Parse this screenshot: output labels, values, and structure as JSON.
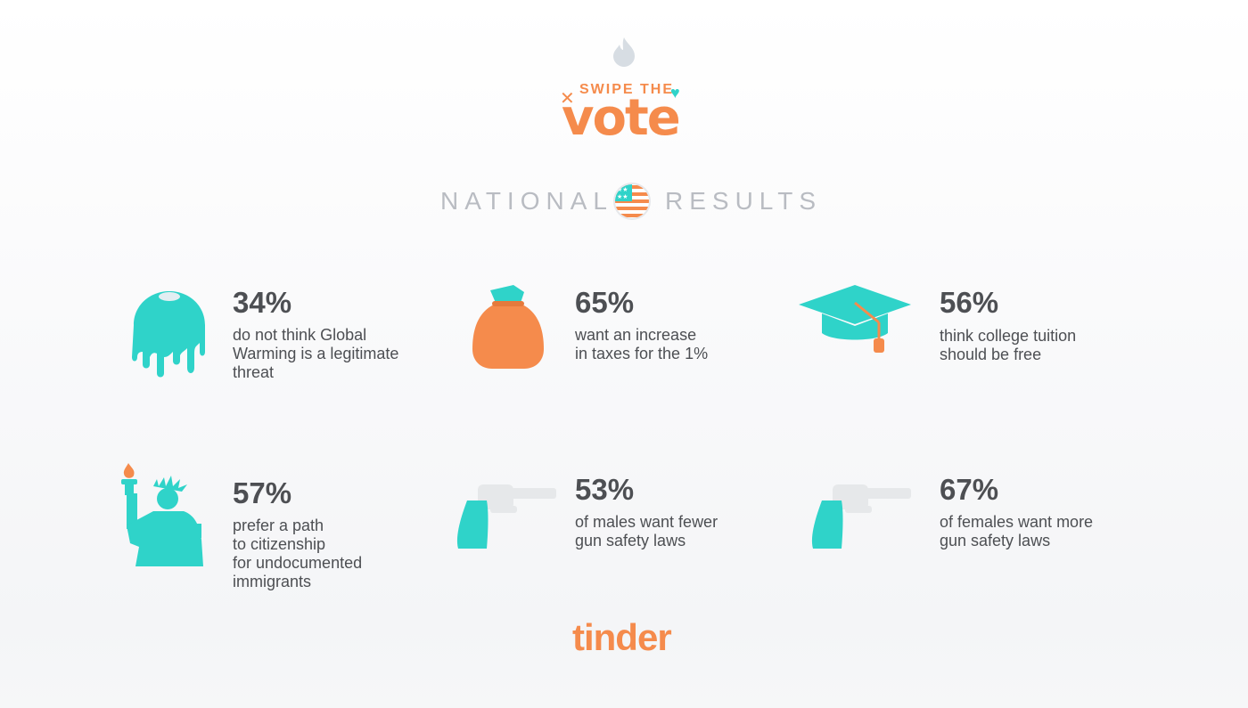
{
  "header": {
    "tagline": "SWIPE THE",
    "brand": "vote",
    "section_left": "NATIONAL",
    "section_right": "RESULTS"
  },
  "stats": [
    {
      "percent": "34%",
      "lines": [
        "do not think Global",
        "Warming is a legitimate",
        "threat"
      ],
      "icon": "melting-globe-icon"
    },
    {
      "percent": "65%",
      "lines": [
        "want an increase",
        "in taxes for the 1%"
      ],
      "icon": "money-bag-icon"
    },
    {
      "percent": "56%",
      "lines": [
        "think college tuition",
        "should be free"
      ],
      "icon": "graduation-cap-icon"
    },
    {
      "percent": "57%",
      "lines": [
        "prefer a path",
        "to citizenship",
        "for undocumented",
        "immigrants"
      ],
      "icon": "statue-of-liberty-icon"
    },
    {
      "percent": "53%",
      "lines": [
        "of males want fewer",
        "gun safety laws"
      ],
      "icon": "revolver-icon"
    },
    {
      "percent": "67%",
      "lines": [
        "of females want more",
        "gun safety laws"
      ],
      "icon": "revolver-icon"
    }
  ],
  "footer": {
    "brand": "tinder"
  },
  "colors": {
    "orange": "#f58b4c",
    "teal": "#2fd3c9",
    "gray_text": "#4d4f53",
    "light_gray": "#b9bcc2"
  }
}
